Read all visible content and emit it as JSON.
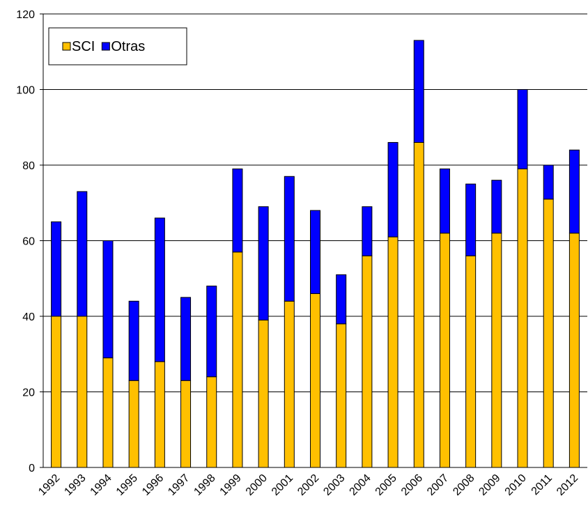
{
  "chart_data": {
    "type": "stacked_bar",
    "categories": [
      "1992",
      "1993",
      "1994",
      "1995",
      "1996",
      "1997",
      "1998",
      "1999",
      "2000",
      "2001",
      "2002",
      "2003",
      "2004",
      "2005",
      "2006",
      "2007",
      "2008",
      "2009",
      "2010",
      "2011",
      "2012"
    ],
    "series": [
      {
        "name": "SCI",
        "color": "#ffc000",
        "values": [
          40,
          40,
          29,
          23,
          28,
          23,
          24,
          57,
          39,
          44,
          46,
          38,
          56,
          61,
          86,
          62,
          56,
          62,
          79,
          71,
          62
        ]
      },
      {
        "name": "Otras",
        "color": "#0000ff",
        "values": [
          25,
          33,
          31,
          21,
          38,
          22,
          24,
          22,
          30,
          33,
          22,
          13,
          13,
          25,
          27,
          17,
          19,
          14,
          21,
          9,
          22
        ]
      }
    ],
    "ylim": [
      0,
      120
    ],
    "yticks": [
      0,
      20,
      40,
      60,
      80,
      100,
      120
    ],
    "grid": true,
    "legend": "top-left"
  }
}
